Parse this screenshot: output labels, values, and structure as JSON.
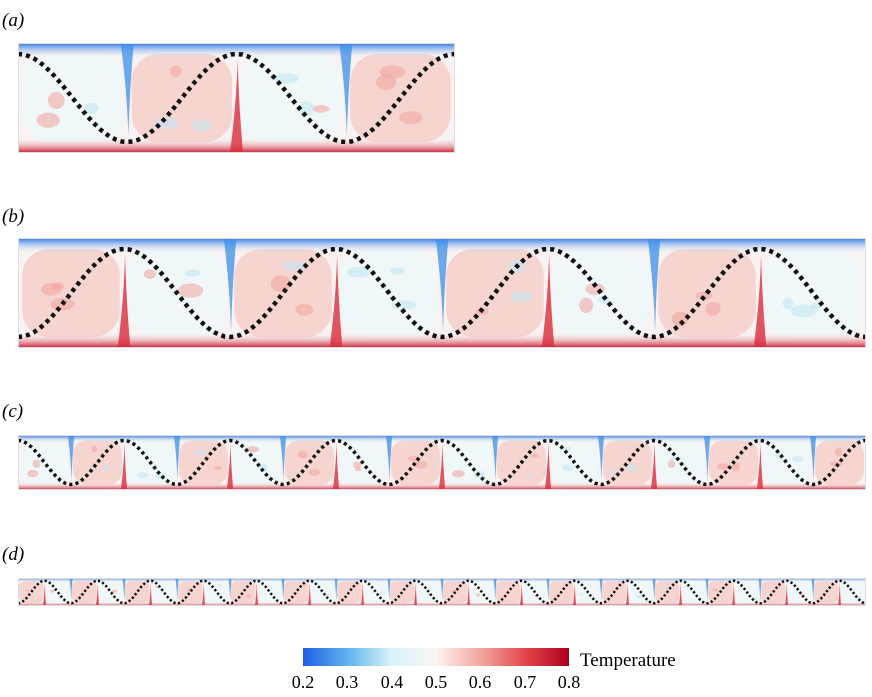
{
  "panels": [
    {
      "label": "(a)",
      "cells": 4
    },
    {
      "label": "(b)",
      "cells": 8
    },
    {
      "label": "(c)",
      "cells": 16
    },
    {
      "label": "(d)",
      "cells": 32
    }
  ],
  "colorbar": {
    "title": "Temperature",
    "ticks": [
      "0.2",
      "0.3",
      "0.4",
      "0.5",
      "0.6",
      "0.7",
      "0.8"
    ],
    "colors": [
      "#1f5fe6",
      "#5fb3ee",
      "#d8f3f8",
      "#fbf4f2",
      "#f4a7a0",
      "#e2474a",
      "#b0001f"
    ]
  }
}
